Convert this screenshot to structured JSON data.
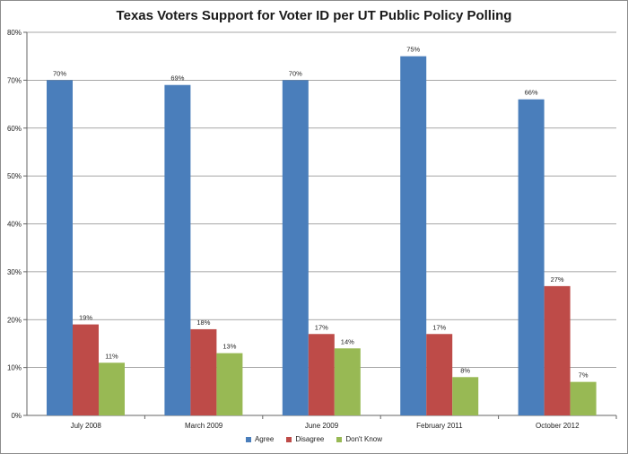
{
  "chart_data": {
    "type": "bar",
    "title": "Texas Voters Support for Voter ID per UT Public Policy Polling",
    "xlabel": "",
    "ylabel": "",
    "ylim": [
      0,
      80
    ],
    "yticks": [
      0,
      10,
      20,
      30,
      40,
      50,
      60,
      70,
      80
    ],
    "ytick_labels": [
      "0%",
      "10%",
      "20%",
      "30%",
      "40%",
      "50%",
      "60%",
      "70%",
      "80%"
    ],
    "categories": [
      "July 2008",
      "March 2009",
      "June 2009",
      "February 2011",
      "October 2012"
    ],
    "series": [
      {
        "name": "Agree",
        "color": "#4a7ebb",
        "values": [
          70,
          69,
          70,
          75,
          66
        ],
        "labels": [
          "70%",
          "69%",
          "70%",
          "75%",
          "66%"
        ]
      },
      {
        "name": "Disagree",
        "color": "#be4b48",
        "values": [
          19,
          18,
          17,
          17,
          27
        ],
        "labels": [
          "19%",
          "18%",
          "17%",
          "17%",
          "27%"
        ]
      },
      {
        "name": "Don't Know",
        "color": "#98b954",
        "values": [
          11,
          13,
          14,
          8,
          7
        ],
        "labels": [
          "11%",
          "13%",
          "14%",
          "8%",
          "7%"
        ]
      }
    ],
    "grid": true,
    "legend": "bottom"
  }
}
